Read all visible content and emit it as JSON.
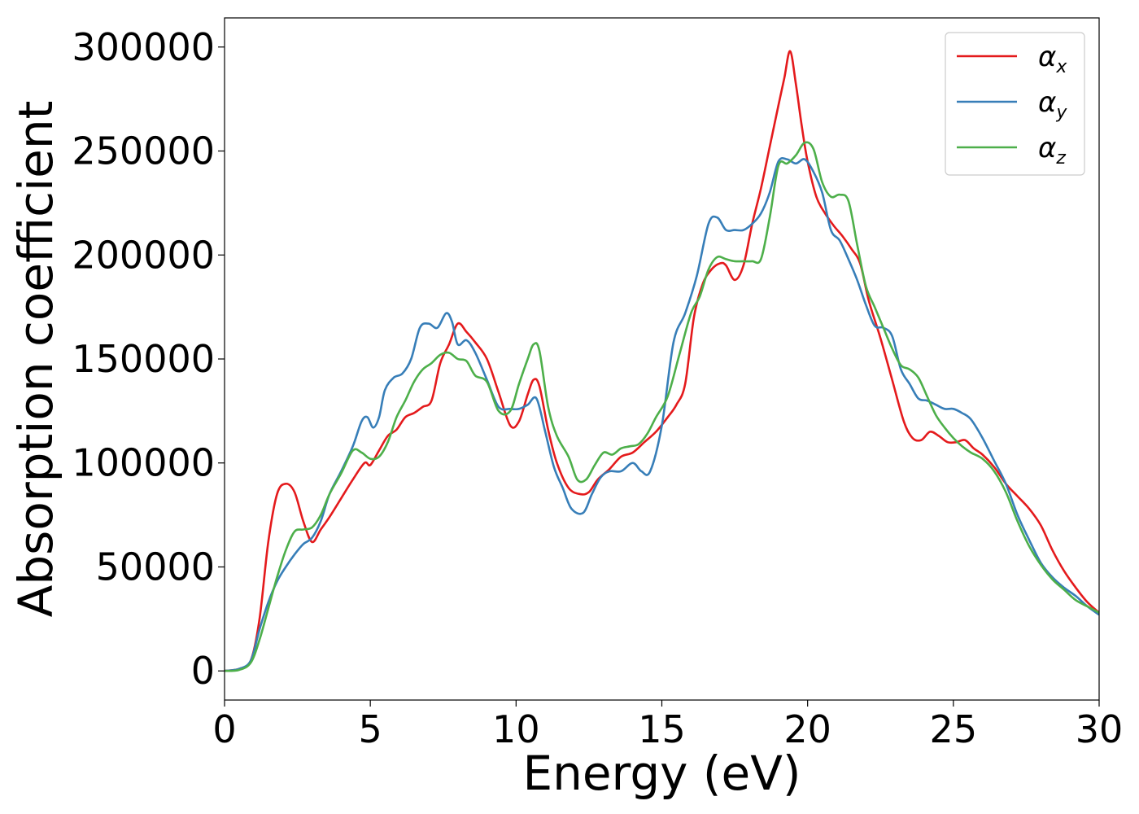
{
  "chart_data": {
    "type": "line",
    "xlabel": "Energy (eV)",
    "ylabel": "Absorption coefficient",
    "xlim": [
      0,
      30
    ],
    "ylim": [
      -14000,
      314000
    ],
    "xticks": [
      0,
      5,
      10,
      15,
      20,
      25,
      30
    ],
    "yticks": [
      0,
      50000,
      100000,
      150000,
      200000,
      250000,
      300000
    ],
    "grid": false,
    "legend": "top-right",
    "series": [
      {
        "name": "αx",
        "symbol": "α",
        "subscript": "x",
        "color": "#e41a1c",
        "x": [
          0,
          0.5,
          0.9,
          1.2,
          1.5,
          1.8,
          2.1,
          2.4,
          2.7,
          3.0,
          3.3,
          3.6,
          4.0,
          4.4,
          4.8,
          5.0,
          5.3,
          5.6,
          5.9,
          6.2,
          6.5,
          6.8,
          7.1,
          7.4,
          7.7,
          8.0,
          8.3,
          8.6,
          9.0,
          9.4,
          9.8,
          10.1,
          10.4,
          10.6,
          10.8,
          11.1,
          11.4,
          11.8,
          12.2,
          12.5,
          12.8,
          13.2,
          13.6,
          14.0,
          14.4,
          14.8,
          15.2,
          15.5,
          15.8,
          16.1,
          16.4,
          16.7,
          17.0,
          17.2,
          17.5,
          17.8,
          18.1,
          18.4,
          18.7,
          19.0,
          19.2,
          19.4,
          19.6,
          19.8,
          20.0,
          20.3,
          20.6,
          20.9,
          21.2,
          21.5,
          21.8,
          22.1,
          22.5,
          22.9,
          23.3,
          23.6,
          23.9,
          24.2,
          24.5,
          24.8,
          25.1,
          25.4,
          25.7,
          26.0,
          26.4,
          26.8,
          27.2,
          27.6,
          28.0,
          28.4,
          28.8,
          29.2,
          29.6,
          30.0
        ],
        "y": [
          0,
          1000,
          5000,
          25000,
          62000,
          85000,
          90000,
          86000,
          72000,
          62000,
          68000,
          74000,
          83000,
          92000,
          100000,
          99000,
          106000,
          113000,
          116000,
          122000,
          124000,
          127000,
          130000,
          148000,
          157000,
          167000,
          163000,
          158000,
          150000,
          134000,
          118000,
          120000,
          133000,
          140000,
          137000,
          116000,
          100000,
          88000,
          85000,
          86000,
          92000,
          97000,
          103000,
          105000,
          110000,
          115000,
          122000,
          128000,
          138000,
          170000,
          186000,
          193000,
          196000,
          195000,
          188000,
          195000,
          215000,
          232000,
          252000,
          272000,
          285000,
          298000,
          282000,
          262000,
          245000,
          228000,
          220000,
          214000,
          209000,
          203000,
          196000,
          178000,
          160000,
          140000,
          120000,
          112000,
          111000,
          115000,
          113000,
          110000,
          110000,
          111000,
          107000,
          104000,
          98000,
          90000,
          84000,
          78000,
          70000,
          58000,
          48000,
          40000,
          33000,
          28000
        ]
      },
      {
        "name": "αy",
        "symbol": "α",
        "subscript": "y",
        "color": "#377eb8",
        "x": [
          0,
          0.5,
          0.9,
          1.2,
          1.5,
          1.8,
          2.1,
          2.4,
          2.7,
          3.0,
          3.3,
          3.6,
          4.0,
          4.4,
          4.7,
          4.9,
          5.1,
          5.3,
          5.5,
          5.8,
          6.1,
          6.4,
          6.7,
          7.0,
          7.3,
          7.6,
          7.8,
          8.0,
          8.3,
          8.6,
          9.0,
          9.4,
          9.8,
          10.1,
          10.4,
          10.7,
          11.0,
          11.3,
          11.6,
          11.9,
          12.3,
          12.6,
          12.9,
          13.2,
          13.6,
          14.0,
          14.3,
          14.6,
          15.0,
          15.4,
          15.8,
          16.2,
          16.6,
          16.9,
          17.2,
          17.5,
          17.8,
          18.1,
          18.4,
          18.7,
          19.0,
          19.3,
          19.6,
          19.9,
          20.2,
          20.5,
          20.8,
          21.1,
          21.4,
          21.7,
          22.0,
          22.3,
          22.6,
          22.9,
          23.2,
          23.5,
          23.8,
          24.1,
          24.4,
          24.7,
          25.0,
          25.3,
          25.6,
          26.0,
          26.4,
          26.8,
          27.2,
          27.6,
          28.0,
          28.4,
          28.8,
          29.2,
          29.6,
          30.0
        ],
        "y": [
          0,
          1000,
          5000,
          20000,
          33000,
          43000,
          50000,
          56000,
          61000,
          64000,
          72000,
          85000,
          96000,
          108000,
          120000,
          122000,
          117000,
          122000,
          135000,
          141000,
          143000,
          150000,
          165000,
          167000,
          165000,
          172000,
          168000,
          157000,
          159000,
          153000,
          140000,
          127000,
          126000,
          126000,
          128000,
          131000,
          115000,
          98000,
          88000,
          78000,
          76000,
          85000,
          93000,
          96000,
          96000,
          100000,
          96000,
          96000,
          118000,
          158000,
          172000,
          190000,
          215000,
          218000,
          212000,
          212000,
          212000,
          215000,
          220000,
          230000,
          245000,
          246000,
          244000,
          246000,
          240000,
          230000,
          212000,
          207000,
          198000,
          188000,
          176000,
          166000,
          165000,
          161000,
          145000,
          138000,
          131000,
          130000,
          128000,
          126000,
          126000,
          124000,
          121000,
          112000,
          101000,
          90000,
          75000,
          63000,
          52000,
          45000,
          40000,
          36000,
          31000,
          27000
        ]
      },
      {
        "name": "αz",
        "symbol": "α",
        "subscript": "z",
        "color": "#4daf4a",
        "x": [
          0,
          0.5,
          0.9,
          1.2,
          1.5,
          1.8,
          2.1,
          2.4,
          2.7,
          3.0,
          3.3,
          3.6,
          4.0,
          4.4,
          4.7,
          5.0,
          5.3,
          5.6,
          5.9,
          6.2,
          6.5,
          6.8,
          7.1,
          7.4,
          7.7,
          8.0,
          8.3,
          8.6,
          9.0,
          9.4,
          9.8,
          10.1,
          10.4,
          10.6,
          10.8,
          11.1,
          11.4,
          11.8,
          12.1,
          12.4,
          12.7,
          13.0,
          13.3,
          13.6,
          13.9,
          14.2,
          14.5,
          14.8,
          15.2,
          15.6,
          16.0,
          16.3,
          16.6,
          16.9,
          17.2,
          17.5,
          17.8,
          18.1,
          18.4,
          18.7,
          19.0,
          19.3,
          19.6,
          19.9,
          20.2,
          20.5,
          20.8,
          21.1,
          21.4,
          21.7,
          22.0,
          22.3,
          22.6,
          22.9,
          23.2,
          23.5,
          23.8,
          24.1,
          24.4,
          24.7,
          25.0,
          25.3,
          25.6,
          26.0,
          26.4,
          26.8,
          27.2,
          27.6,
          28.0,
          28.4,
          28.8,
          29.2,
          29.6,
          30.0
        ],
        "y": [
          0,
          500,
          4000,
          15000,
          30000,
          45000,
          58000,
          67000,
          68000,
          69000,
          75000,
          85000,
          95000,
          106000,
          105000,
          102000,
          103000,
          110000,
          122000,
          130000,
          139000,
          145000,
          148000,
          152000,
          153000,
          150000,
          149000,
          142000,
          139000,
          125000,
          125000,
          138000,
          150000,
          157000,
          154000,
          127000,
          113000,
          103000,
          92000,
          92000,
          99000,
          105000,
          104000,
          107000,
          108000,
          109000,
          114000,
          122000,
          132000,
          152000,
          172000,
          180000,
          193000,
          199000,
          198000,
          197000,
          197000,
          197000,
          198000,
          218000,
          243000,
          244000,
          248000,
          254000,
          251000,
          235000,
          228000,
          229000,
          226000,
          205000,
          185000,
          175000,
          165000,
          155000,
          147000,
          145000,
          141000,
          132000,
          123000,
          117000,
          112000,
          108000,
          105000,
          102000,
          96000,
          86000,
          72000,
          60000,
          51000,
          44000,
          39000,
          34000,
          31000,
          28000
        ]
      }
    ]
  }
}
